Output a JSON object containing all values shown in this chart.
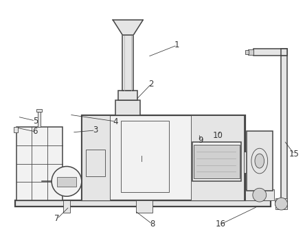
{
  "bg_color": "#ffffff",
  "line_color": "#555555",
  "light_gray": "#d8d8d8",
  "mid_gray": "#aaaaaa",
  "dark_gray": "#444444",
  "fill_light": "#f2f2f2",
  "fill_mid": "#e5e5e5",
  "fill_dark": "#d0d0d0",
  "label_color": "#333333",
  "label_fs": 8.5
}
